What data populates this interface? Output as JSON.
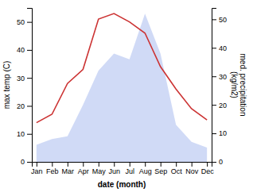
{
  "chart_data": {
    "type": "line",
    "categories": [
      "Jan",
      "Feb",
      "Mar",
      "Apr",
      "May",
      "Jun",
      "Jul",
      "Aug",
      "Sep",
      "Oct",
      "Nov",
      "Dec"
    ],
    "x_label": "date (month)",
    "y_label": "max temp (C)",
    "y2_label": "med. precipitation\n(kg/m2)",
    "series": [
      {
        "type": "area",
        "axis": "y2",
        "color": "#aabbee",
        "values": [
          6,
          8,
          9,
          20,
          32,
          38,
          36,
          52,
          38,
          13,
          7,
          5
        ]
      },
      {
        "type": "line",
        "color": "#cc3333",
        "values": [
          14,
          17,
          28,
          33,
          51,
          53,
          50,
          46,
          34,
          26,
          19,
          15
        ]
      }
    ],
    "ylim": [
      0,
      55
    ],
    "yticks": [
      0,
      10,
      20,
      30,
      40,
      50
    ],
    "y2lim": [
      0,
      54
    ],
    "y2ticks": [
      0,
      10,
      20,
      30,
      40,
      50
    ]
  }
}
